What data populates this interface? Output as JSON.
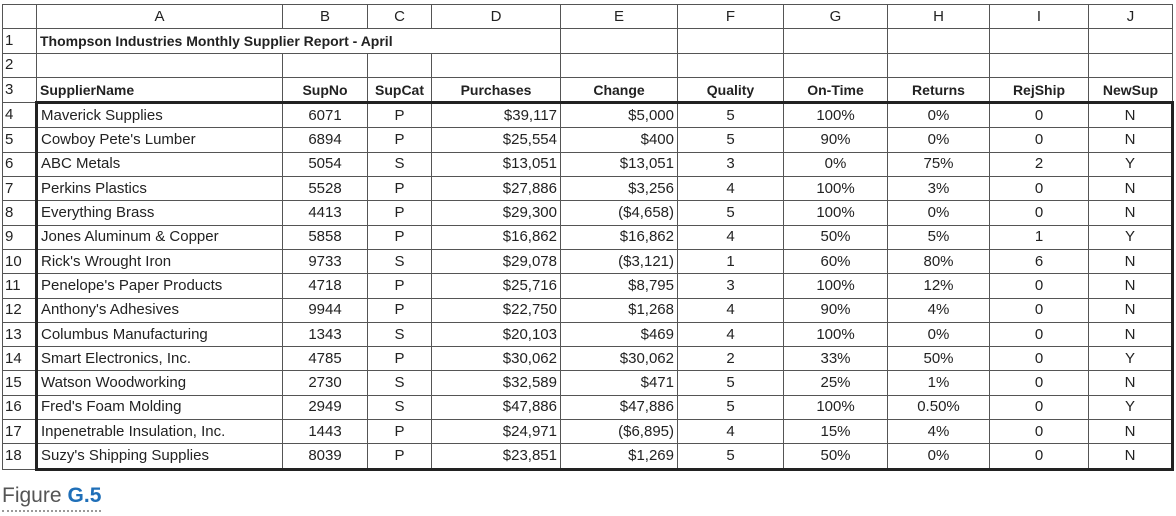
{
  "column_letters": [
    "A",
    "B",
    "C",
    "D",
    "E",
    "F",
    "G",
    "H",
    "I",
    "J"
  ],
  "row_numbers": [
    1,
    2,
    3,
    4,
    5,
    6,
    7,
    8,
    9,
    10,
    11,
    12,
    13,
    14,
    15,
    16,
    17,
    18
  ],
  "title": "Thompson Industries Monthly Supplier Report - April",
  "table": {
    "header": [
      "SupplierName",
      "SupNo",
      "SupCat",
      "Purchases",
      "Change",
      "Quality",
      "On-Time",
      "Returns",
      "RejShip",
      "NewSup"
    ],
    "rows": [
      [
        "Maverick Supplies",
        6071,
        "P",
        "$39,117",
        "$5,000",
        5,
        "100%",
        "0%",
        0,
        "N"
      ],
      [
        "Cowboy Pete's Lumber",
        6894,
        "P",
        "$25,554",
        "$400",
        5,
        "90%",
        "0%",
        0,
        "N"
      ],
      [
        "ABC Metals",
        5054,
        "S",
        "$13,051",
        "$13,051",
        3,
        "0%",
        "75%",
        2,
        "Y"
      ],
      [
        "Perkins Plastics",
        5528,
        "P",
        "$27,886",
        "$3,256",
        4,
        "100%",
        "3%",
        0,
        "N"
      ],
      [
        "Everything Brass",
        4413,
        "P",
        "$29,300",
        "($4,658)",
        5,
        "100%",
        "0%",
        0,
        "N"
      ],
      [
        "Jones Aluminum & Copper",
        5858,
        "P",
        "$16,862",
        "$16,862",
        4,
        "50%",
        "5%",
        1,
        "Y"
      ],
      [
        "Rick's Wrought Iron",
        9733,
        "S",
        "$29,078",
        "($3,121)",
        1,
        "60%",
        "80%",
        6,
        "N"
      ],
      [
        "Penelope's Paper Products",
        4718,
        "P",
        "$25,716",
        "$8,795",
        3,
        "100%",
        "12%",
        0,
        "N"
      ],
      [
        "Anthony's Adhesives",
        9944,
        "P",
        "$22,750",
        "$1,268",
        4,
        "90%",
        "4%",
        0,
        "N"
      ],
      [
        "Columbus Manufacturing",
        1343,
        "S",
        "$20,103",
        "$469",
        4,
        "100%",
        "0%",
        0,
        "N"
      ],
      [
        "Smart Electronics, Inc.",
        4785,
        "P",
        "$30,062",
        "$30,062",
        2,
        "33%",
        "50%",
        0,
        "Y"
      ],
      [
        "Watson Woodworking",
        2730,
        "S",
        "$32,589",
        "$471",
        5,
        "25%",
        "1%",
        0,
        "N"
      ],
      [
        "Fred's Foam Molding",
        2949,
        "S",
        "$47,886",
        "$47,886",
        5,
        "100%",
        "0.50%",
        0,
        "Y"
      ],
      [
        "Inpenetrable Insulation, Inc.",
        1443,
        "P",
        "$24,971",
        "($6,895)",
        4,
        "15%",
        "4%",
        0,
        "N"
      ],
      [
        "Suzy's Shipping Supplies",
        8039,
        "P",
        "$23,851",
        "$1,269",
        5,
        "50%",
        "0%",
        0,
        "N"
      ]
    ]
  },
  "figure": {
    "label": "Figure",
    "number": "G.5"
  }
}
